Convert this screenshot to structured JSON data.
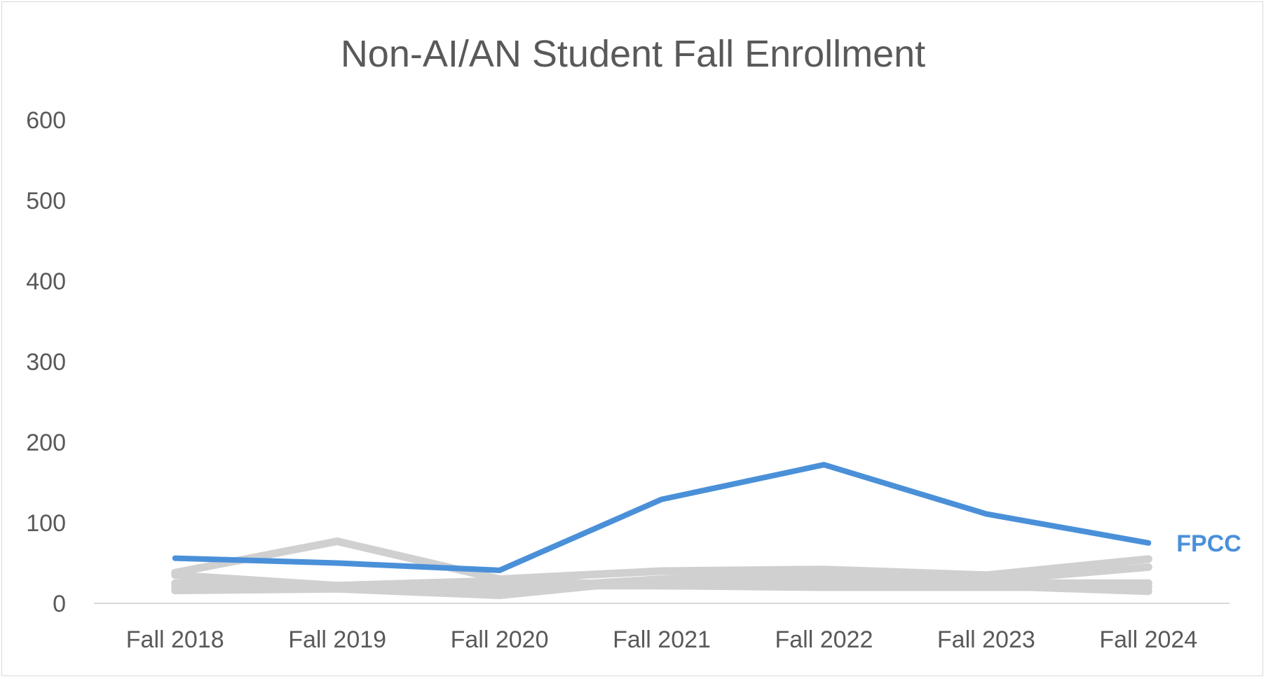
{
  "chart_data": {
    "type": "line",
    "title": "Non-AI/AN Student Fall Enrollment",
    "xlabel": "",
    "ylabel": "",
    "categories": [
      "Fall 2018",
      "Fall 2019",
      "Fall 2020",
      "Fall 2021",
      "Fall 2022",
      "Fall 2023",
      "Fall 2024"
    ],
    "ylim": [
      0,
      600
    ],
    "yticks": [
      "0",
      "100",
      "200",
      "300",
      "400",
      "500",
      "600"
    ],
    "grid": false,
    "legend": "none",
    "highlight_color": "#4a90d9",
    "muted_color": "#d0d0d0",
    "series": [
      {
        "values": [
          38,
          77,
          30,
          40,
          42,
          35,
          55
        ],
        "highlight": false
      },
      {
        "values": [
          35,
          22,
          22,
          22,
          22,
          25,
          25
        ],
        "highlight": false
      },
      {
        "values": [
          25,
          20,
          18,
          30,
          38,
          28,
          45
        ],
        "highlight": false
      },
      {
        "values": [
          16,
          18,
          10,
          30,
          30,
          22,
          15
        ],
        "highlight": false
      },
      {
        "values": [
          20,
          22,
          28,
          22,
          20,
          20,
          20
        ],
        "highlight": false
      },
      {
        "name": "FPCC",
        "values": [
          56,
          50,
          41,
          129,
          172,
          111,
          75
        ],
        "highlight": true
      }
    ]
  }
}
